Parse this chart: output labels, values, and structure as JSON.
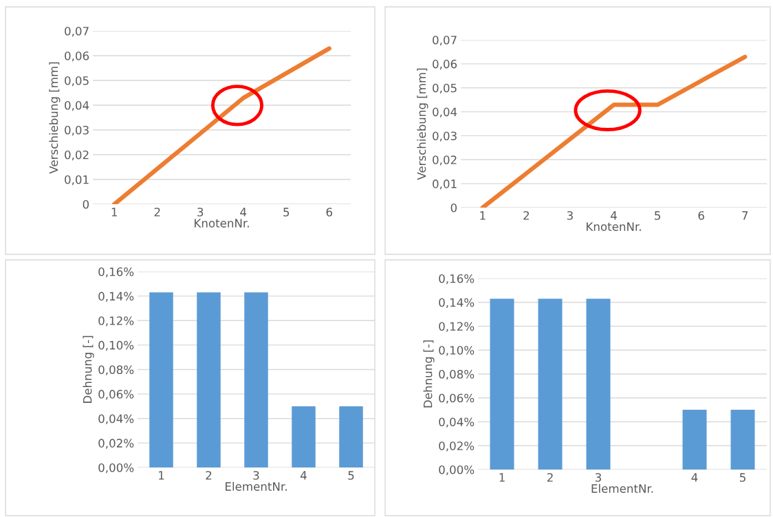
{
  "chart_data": [
    {
      "type": "line",
      "categories": [
        "1",
        "2",
        "3",
        "4",
        "5",
        "6"
      ],
      "xlabel": "KnotenNr.",
      "ylabel": "Verschiebung [mm]",
      "series": [
        {
          "color": "#ed7d31",
          "values": [
            0,
            0.0143,
            0.0286,
            0.0429,
            0.0529,
            0.0629
          ]
        }
      ],
      "ylim": [
        0,
        0.07
      ],
      "yticks": [
        {
          "value": 0,
          "label": "0"
        },
        {
          "value": 0.01,
          "label": "0,01"
        },
        {
          "value": 0.02,
          "label": "0,02"
        },
        {
          "value": 0.03,
          "label": "0,03"
        },
        {
          "value": 0.04,
          "label": "0,04"
        },
        {
          "value": 0.05,
          "label": "0,05"
        },
        {
          "value": 0.06,
          "label": "0,06"
        },
        {
          "value": 0.07,
          "label": "0,07"
        }
      ],
      "grid": "y",
      "marker": "none",
      "line_style": "solid"
    },
    {
      "type": "line",
      "categories": [
        "1",
        "2",
        "3",
        "4",
        "5",
        "6",
        "7"
      ],
      "xlabel": "KnotenNr.",
      "ylabel": "Verschiebung [mm]",
      "series": [
        {
          "color": "#ed7d31",
          "values": [
            0,
            0.0143,
            0.0286,
            0.0429,
            0.0429,
            0.0529,
            0.0629
          ]
        }
      ],
      "ylim": [
        0,
        0.07
      ],
      "yticks": [
        {
          "value": 0,
          "label": "0"
        },
        {
          "value": 0.01,
          "label": "0,01"
        },
        {
          "value": 0.02,
          "label": "0,02"
        },
        {
          "value": 0.03,
          "label": "0,03"
        },
        {
          "value": 0.04,
          "label": "0,04"
        },
        {
          "value": 0.05,
          "label": "0,05"
        },
        {
          "value": 0.06,
          "label": "0,06"
        },
        {
          "value": 0.07,
          "label": "0,07"
        }
      ],
      "grid": "y",
      "marker": "none",
      "line_style": "solid"
    },
    {
      "type": "bar",
      "categories": [
        "1",
        "2",
        "3",
        "4",
        "5"
      ],
      "xlabel": "ElementNr.",
      "ylabel": "Dehnung [-]",
      "series": [
        {
          "color": "#5b9bd5",
          "values": [
            0.143,
            0.143,
            0.143,
            0.05,
            0.05
          ]
        }
      ],
      "ylim": [
        0,
        0.16
      ],
      "yticks": [
        {
          "value": 0,
          "label": "0,00%"
        },
        {
          "value": 0.02,
          "label": "0,02%"
        },
        {
          "value": 0.04,
          "label": "0,04%"
        },
        {
          "value": 0.06,
          "label": "0,06%"
        },
        {
          "value": 0.08,
          "label": "0,08%"
        },
        {
          "value": 0.1,
          "label": "0,10%"
        },
        {
          "value": 0.12,
          "label": "0,12%"
        },
        {
          "value": 0.14,
          "label": "0,14%"
        },
        {
          "value": 0.16,
          "label": "0,16%"
        }
      ],
      "grid": "y"
    },
    {
      "type": "bar",
      "categories": [
        "1",
        "2",
        "3",
        null,
        "4",
        "5"
      ],
      "xlabel": "ElementNr.",
      "ylabel": "Dehnung [-]",
      "series": [
        {
          "color": "#5b9bd5",
          "values": [
            0.143,
            0.143,
            0.143,
            null,
            0.05,
            0.05
          ]
        }
      ],
      "ylim": [
        0,
        0.16
      ],
      "yticks": [
        {
          "value": 0,
          "label": "0,00%"
        },
        {
          "value": 0.02,
          "label": "0,02%"
        },
        {
          "value": 0.04,
          "label": "0,04%"
        },
        {
          "value": 0.06,
          "label": "0,06%"
        },
        {
          "value": 0.08,
          "label": "0,08%"
        },
        {
          "value": 0.1,
          "label": "0,10%"
        },
        {
          "value": 0.12,
          "label": "0,12%"
        },
        {
          "value": 0.14,
          "label": "0,14%"
        },
        {
          "value": 0.16,
          "label": "0,16%"
        }
      ],
      "grid": "y"
    }
  ]
}
